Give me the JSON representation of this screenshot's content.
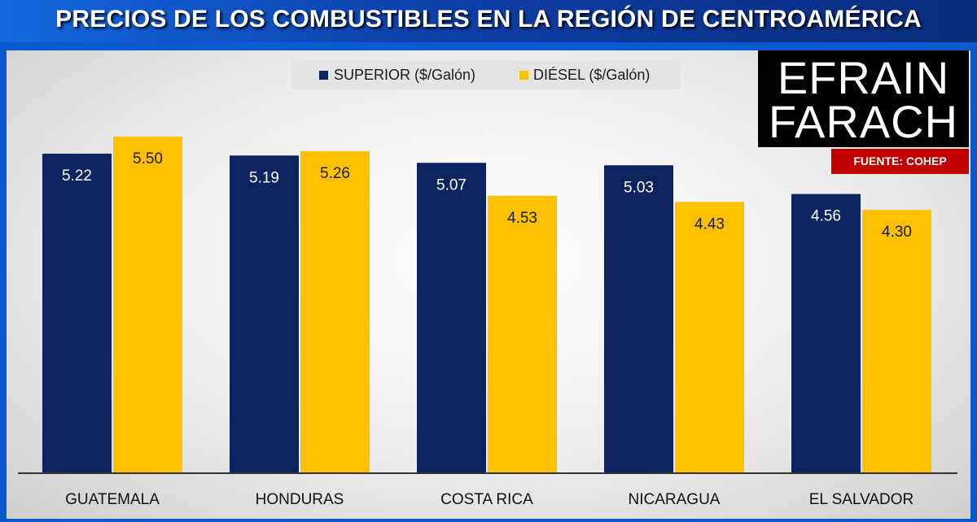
{
  "title": "PRECIOS DE LOS COMBUSTIBLES EN LA REGIÓN DE CENTROAMÉRICA",
  "logo": {
    "line1": "EFRAIN",
    "line2": "FARACH"
  },
  "source_badge": "FUENTE: COHEP",
  "colors": {
    "superior": "#0e2460",
    "diesel": "#ffc000",
    "source_bg": "#c00000"
  },
  "chart_data": {
    "type": "bar",
    "categories": [
      "GUATEMALA",
      "HONDURAS",
      "COSTA RICA",
      "NICARAGUA",
      "EL SALVADOR"
    ],
    "series": [
      {
        "name": "SUPERIOR ($/Galón)",
        "values": [
          5.22,
          5.19,
          5.07,
          5.03,
          4.56
        ],
        "color": "#0e2460",
        "label_color": "#ffffff"
      },
      {
        "name": "DIÉSEL ($/Galón)",
        "values": [
          5.5,
          5.26,
          4.53,
          4.43,
          4.3
        ],
        "color": "#ffc000",
        "label_color": "#1a1a1a"
      }
    ],
    "ylim": [
      0,
      5.5
    ],
    "legend_position": "top",
    "grid": false
  }
}
